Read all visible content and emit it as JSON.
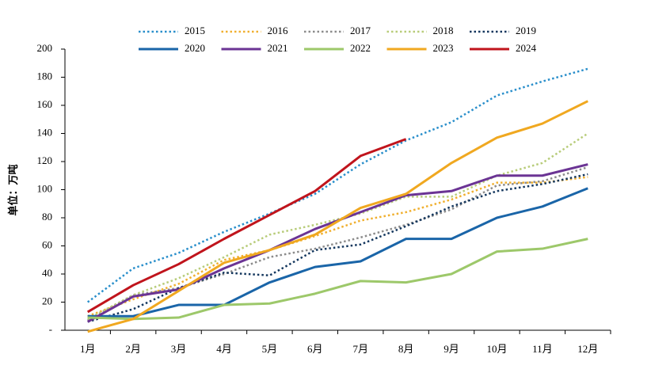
{
  "chart_data": {
    "type": "line",
    "y_label": "单位：万吨",
    "categories": [
      "1月",
      "2月",
      "3月",
      "4月",
      "5月",
      "6月",
      "7月",
      "8月",
      "9月",
      "10月",
      "11月",
      "12月"
    ],
    "ylim": [
      0,
      200
    ],
    "yticks": [
      {
        "value": 0,
        "label": "-"
      },
      20,
      40,
      60,
      80,
      100,
      120,
      140,
      160,
      180,
      200
    ],
    "series": [
      {
        "name": "2015",
        "color": "#2a8fcb",
        "style": "dotted",
        "values": [
          20,
          44,
          55,
          70,
          83,
          97,
          118,
          135,
          148,
          167,
          177,
          186
        ]
      },
      {
        "name": "2016",
        "color": "#f0b030",
        "style": "dotted",
        "values": [
          10,
          22,
          33,
          50,
          57,
          67,
          78,
          84,
          93,
          105,
          105,
          109
        ]
      },
      {
        "name": "2017",
        "color": "#8c8c8c",
        "style": "dotted",
        "values": [
          7,
          25,
          30,
          40,
          52,
          58,
          66,
          75,
          86,
          103,
          106,
          116
        ]
      },
      {
        "name": "2018",
        "color": "#b8cc7a",
        "style": "dotted",
        "values": [
          8,
          25,
          37,
          52,
          68,
          75,
          83,
          95,
          95,
          110,
          119,
          140
        ]
      },
      {
        "name": "2019",
        "color": "#14375e",
        "style": "dotted",
        "values": [
          6,
          15,
          30,
          41,
          39,
          57,
          61,
          74,
          88,
          99,
          104,
          111
        ]
      },
      {
        "name": "2020",
        "color": "#1a65a8",
        "style": "solid",
        "values": [
          10,
          10,
          18,
          18,
          34,
          45,
          49,
          65,
          65,
          80,
          88,
          101
        ]
      },
      {
        "name": "2021",
        "color": "#6b3494",
        "style": "solid",
        "values": [
          6,
          24,
          29,
          44,
          57,
          72,
          84,
          96,
          99,
          110,
          110,
          118
        ]
      },
      {
        "name": "2022",
        "color": "#9dc86a",
        "style": "solid",
        "values": [
          9,
          8,
          9,
          18,
          19,
          26,
          35,
          34,
          40,
          56,
          58,
          65
        ]
      },
      {
        "name": "2023",
        "color": "#f0a820",
        "style": "solid",
        "values": [
          -1,
          8,
          28,
          48,
          57,
          68,
          87,
          97,
          119,
          137,
          147,
          163
        ]
      },
      {
        "name": "2024",
        "color": "#c0141c",
        "style": "solid",
        "values": [
          13,
          32,
          47,
          65,
          82,
          99,
          124,
          136,
          null,
          null,
          null,
          null
        ]
      }
    ]
  }
}
